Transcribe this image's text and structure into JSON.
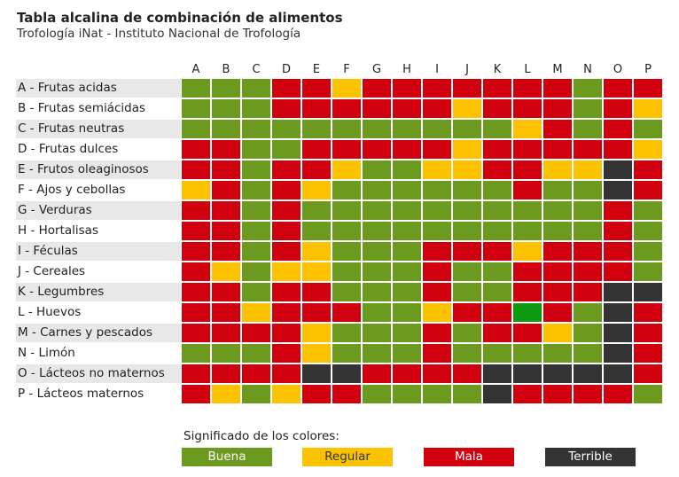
{
  "header": {
    "title": "Tabla alcalina de combinación de alimentos",
    "subtitle": "Trofología iNat - Instituto Nacional de Trofología"
  },
  "colors": {
    "G": "#6b9a1f",
    "Y": "#fcc200",
    "R": "#d0000e",
    "K": "#333333",
    "B": "#0e9a0e"
  },
  "columns": [
    "A",
    "B",
    "C",
    "D",
    "E",
    "F",
    "G",
    "H",
    "I",
    "J",
    "K",
    "L",
    "M",
    "N",
    "O",
    "P"
  ],
  "rows": [
    {
      "label": "A - Frutas acidas",
      "cells": "GGGRRYRRRRRRRGRR"
    },
    {
      "label": "B - Frutas semiácidas",
      "cells": "GGGRRRRRRYRRRGRY"
    },
    {
      "label": "C - Frutas neutras",
      "cells": "GGGGGGGGGGGYRGRG"
    },
    {
      "label": "D - Frutas dulces",
      "cells": "RRGGRRRRRYRRRRRY"
    },
    {
      "label": "E - Frutos oleaginosos",
      "cells": "RRGRRYGGYYRRYYKR"
    },
    {
      "label": "F - Ajos y cebollas",
      "cells": "YRGRYGGGGGGRGGKR"
    },
    {
      "label": "G - Verduras",
      "cells": "RRGRGGGGGGGGGGRG"
    },
    {
      "label": "H - Hortalisas",
      "cells": "RRGRGGGGGGGGGGRG"
    },
    {
      "label": "I - Féculas",
      "cells": "RRGRYGGGRRRYRRRG"
    },
    {
      "label": "J - Cereales",
      "cells": "RYGYYGGGRGGRRRRG"
    },
    {
      "label": "K - Legumbres",
      "cells": "RRGRRGGGRGGRRRKK"
    },
    {
      "label": "L - Huevos",
      "cells": "RRYRRRGGYRRBRGKR"
    },
    {
      "label": "M - Carnes y pescados",
      "cells": "RRRRYGGGRGRRYGKR"
    },
    {
      "label": "N - Limón",
      "cells": "GGGRYGGGRGGGGGKR"
    },
    {
      "label": "O - Lácteos no maternos",
      "cells": "RRRRKKRRRRKKKKKR"
    },
    {
      "label": "P - Lácteos maternos",
      "cells": "RYGYRRGGGGKRRRRG"
    }
  ],
  "legend": {
    "title": "Significado de los colores:",
    "items": [
      {
        "label": "Buena",
        "color": "#6b9a1f",
        "text_color": "#ffffff"
      },
      {
        "label": "Regular",
        "color": "#fcc200",
        "text_color": "#333333"
      },
      {
        "label": "Mala",
        "color": "#d0000e",
        "text_color": "#ffffff"
      },
      {
        "label": "Terrible",
        "color": "#333333",
        "text_color": "#ffffff"
      }
    ]
  }
}
